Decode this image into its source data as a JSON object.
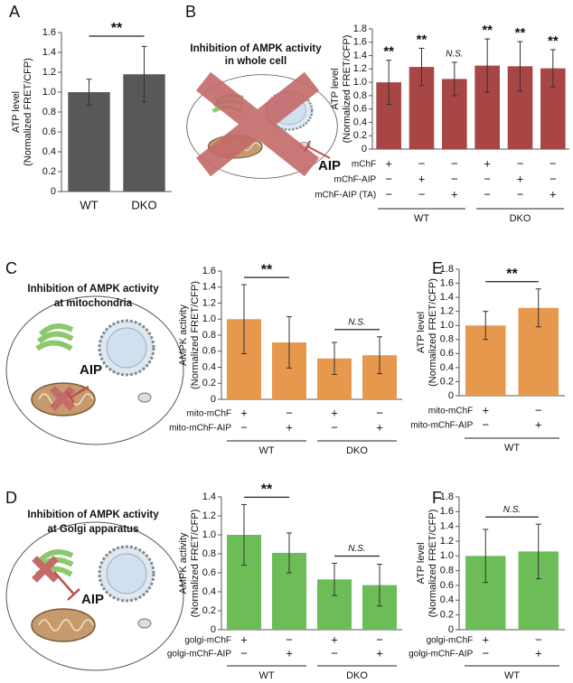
{
  "chart_data": [
    {
      "type": "bar",
      "panel": "A",
      "y_label": [
        "ATP level",
        "(Normalized FRET/CFP)"
      ],
      "categories": [
        "WT",
        "DKO"
      ],
      "values": [
        1.0,
        1.18
      ],
      "errors": [
        0.13,
        0.28
      ],
      "color": "#585858",
      "ylim": [
        0,
        1.6
      ],
      "yticks": [
        0,
        0.2,
        0.4,
        0.6,
        0.8,
        {
          "value": 1,
          "label": "1.0"
        },
        1.2,
        1.4,
        1.6
      ],
      "pair_labels": [
        "**"
      ]
    },
    {
      "type": "bar",
      "panel": "B",
      "diagram": {
        "title": [
          "Inhibition of AMPK activity",
          "in whole cell"
        ],
        "label": "AIP"
      },
      "y_label": [
        "ATP level",
        "(Normalized FRET/CFP)"
      ],
      "values": [
        1.0,
        1.23,
        1.05,
        1.25,
        1.24,
        1.21
      ],
      "errors": [
        0.33,
        0.28,
        0.25,
        0.4,
        0.37,
        0.28
      ],
      "color": "#a84545",
      "ylim": [
        0,
        1.8
      ],
      "yticks": [
        0,
        0.2,
        0.4,
        0.6,
        0.8,
        {
          "value": 1,
          "label": "1.0"
        },
        1.2,
        1.4,
        1.6,
        1.8
      ],
      "bar_labels": [
        "**",
        "**",
        "N.S.",
        "**",
        "**",
        "**"
      ],
      "conditions": [
        {
          "name": "mChF",
          "signs": [
            "+",
            "−",
            "−",
            "+",
            "−",
            "−"
          ]
        },
        {
          "name": "mChF-AIP",
          "signs": [
            "−",
            "+",
            "−",
            "−",
            "+",
            "−"
          ]
        },
        {
          "name": "mChF-AIP (TA)",
          "signs": [
            "−",
            "−",
            "+",
            "−",
            "−",
            "+"
          ]
        }
      ],
      "groups": [
        "WT",
        "DKO"
      ]
    },
    {
      "type": "bar",
      "panel": "C",
      "diagram": {
        "title": [
          "Inhibition of AMPK activity",
          "at mitochondria"
        ],
        "label": "AIP"
      },
      "y_label": [
        "AMPK activity",
        "(Normalized FRET/CFP)"
      ],
      "values": [
        1.0,
        0.71,
        0.51,
        0.55
      ],
      "errors": [
        0.43,
        0.32,
        0.2,
        0.23
      ],
      "color": "#e6994d",
      "ylim": [
        0,
        1.6
      ],
      "yticks": [
        0,
        0.2,
        0.4,
        0.6,
        0.8,
        {
          "value": 1,
          "label": "1.0"
        },
        1.2,
        1.4,
        1.6
      ],
      "pair_labels": [
        "**",
        "N.S."
      ],
      "conditions": [
        {
          "name": "mito-mChF",
          "signs": [
            "+",
            "−",
            "+",
            "−"
          ]
        },
        {
          "name": "mito-mChF-AIP",
          "signs": [
            "−",
            "+",
            "−",
            "+"
          ]
        }
      ],
      "groups": [
        "WT",
        "DKO"
      ]
    },
    {
      "type": "bar",
      "panel": "E",
      "y_label": [
        "ATP level",
        "(Normalized FRET/CFP)"
      ],
      "values": [
        1.0,
        1.25
      ],
      "errors": [
        0.2,
        0.27
      ],
      "color": "#e6994d",
      "ylim": [
        0,
        1.8
      ],
      "yticks": [
        0,
        0.2,
        0.4,
        0.6,
        0.8,
        {
          "value": 1,
          "label": "1.0"
        },
        1.2,
        1.4,
        1.6,
        1.8
      ],
      "pair_labels": [
        "**"
      ],
      "conditions": [
        {
          "name": "mito-mChF",
          "signs": [
            "+",
            "−"
          ]
        },
        {
          "name": "mito-mChF-AIP",
          "signs": [
            "−",
            "+"
          ]
        }
      ],
      "groups": [
        "WT"
      ]
    },
    {
      "type": "bar",
      "panel": "D",
      "diagram": {
        "title": [
          "Inhibition of AMPK activity",
          "at Golgi apparatus"
        ],
        "label": "AIP"
      },
      "y_label": [
        "AMPK activity",
        "(Normalized FRET/CFP)"
      ],
      "values": [
        1.0,
        0.81,
        0.53,
        0.47
      ],
      "errors": [
        0.32,
        0.21,
        0.17,
        0.22
      ],
      "color": "#6cbd58",
      "ylim": [
        0,
        1.4
      ],
      "yticks": [
        0,
        0.2,
        0.4,
        0.6,
        0.8,
        {
          "value": 1,
          "label": "1.0"
        },
        1.2,
        1.4
      ],
      "pair_labels": [
        "**",
        "N.S."
      ],
      "conditions": [
        {
          "name": "golgi-mChF",
          "signs": [
            "+",
            "−",
            "+",
            "−"
          ]
        },
        {
          "name": "golgi-mChF-AIP",
          "signs": [
            "−",
            "+",
            "−",
            "+"
          ]
        }
      ],
      "groups": [
        "WT",
        "DKO"
      ]
    },
    {
      "type": "bar",
      "panel": "F",
      "y_label": [
        "ATP level",
        "(Normalized FRET/CFP)"
      ],
      "values": [
        1.0,
        1.06
      ],
      "errors": [
        0.36,
        0.37
      ],
      "color": "#6cbd58",
      "ylim": [
        0,
        1.8
      ],
      "yticks": [
        0,
        0.2,
        0.4,
        0.6,
        0.8,
        {
          "value": 1,
          "label": "1.0"
        },
        1.2,
        1.4,
        1.6,
        1.8
      ],
      "pair_labels": [
        "N.S."
      ],
      "conditions": [
        {
          "name": "golgi-mChF",
          "signs": [
            "+",
            "−"
          ]
        },
        {
          "name": "golgi-mChF-AIP",
          "signs": [
            "−",
            "+"
          ]
        }
      ],
      "groups": [
        "WT"
      ]
    }
  ]
}
